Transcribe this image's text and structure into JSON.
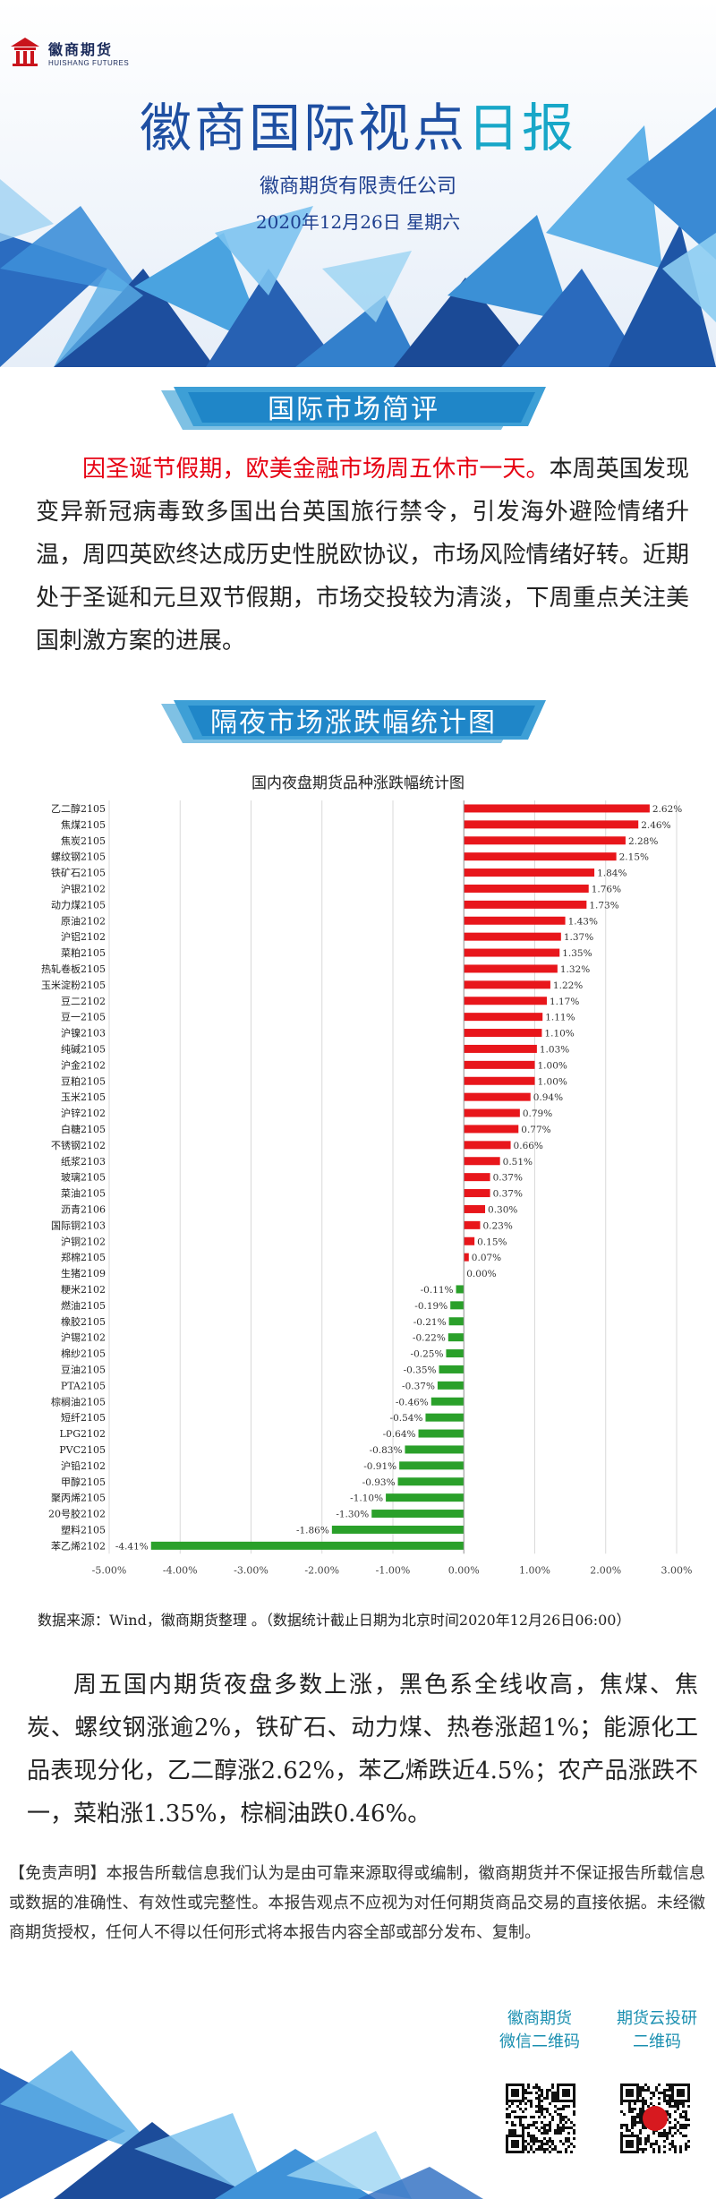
{
  "header": {
    "logo_cn": "徽商期货",
    "logo_en": "HUISHANG FUTURES",
    "title_part1": "徽商国际视点",
    "title_part2": "日报",
    "company": "徽商期货有限责任公司",
    "date": "2020年12月26日  星期六"
  },
  "section1": {
    "title": "国际市场简评",
    "para_red": "因圣诞节假期，欧美金融市场周五休市一天。",
    "para_rest": "本周英国发现变异新冠病毒致多国出台英国旅行禁令，引发海外避险情绪升温，周四英欧终达成历史性脱欧协议，市场风险情绪好转。近期处于圣诞和元旦双节假期，市场交投较为清淡，下周重点关注美国刺激方案的进展。"
  },
  "section2": {
    "title": "隔夜市场涨跌幅统计图",
    "source": "数据来源：Wind，徽商期货整理 。（数据统计截止日期为北京时间2020年12月26日06:00）",
    "commentary": "周五国内期货夜盘多数上涨，黑色系全线收高，焦煤、焦炭、螺纹钢涨逾2%，铁矿石、动力煤、热卷涨超1%；能源化工品表现分化，乙二醇涨2.62%，苯乙烯跌近4.5%；农产品涨跌不一，菜粕涨1.35%，棕榈油跌0.46%。"
  },
  "chart_data": {
    "type": "bar",
    "orientation": "horizontal",
    "title": "国内夜盘期货品种涨跌幅统计图",
    "xlim": [
      -5,
      3
    ],
    "x_ticks": [
      "-5.00%",
      "-4.00%",
      "-3.00%",
      "-2.00%",
      "-1.00%",
      "0.00%",
      "1.00%",
      "2.00%",
      "3.00%"
    ],
    "grid": "vertical",
    "positive_color": "#e8161b",
    "negative_color": "#2aa02a",
    "categories": [
      "乙二醇2105",
      "焦煤2105",
      "焦炭2105",
      "螺纹钢2105",
      "铁矿石2105",
      "沪银2102",
      "动力煤2105",
      "原油2102",
      "沪铝2102",
      "菜粕2105",
      "热轧卷板2105",
      "玉米淀粉2105",
      "豆二2102",
      "豆一2105",
      "沪镍2103",
      "纯碱2105",
      "沪金2102",
      "豆粕2105",
      "玉米2105",
      "沪锌2102",
      "白糖2105",
      "不锈钢2102",
      "纸浆2103",
      "玻璃2105",
      "菜油2105",
      "沥青2106",
      "国际铜2103",
      "沪铜2102",
      "郑棉2105",
      "生猪2109",
      "粳米2102",
      "燃油2105",
      "橡胶2105",
      "沪锡2102",
      "棉纱2105",
      "豆油2105",
      "PTA2105",
      "棕榈油2105",
      "短纤2105",
      "LPG2102",
      "PVC2105",
      "沪铅2102",
      "甲醇2105",
      "聚丙烯2105",
      "20号胶2102",
      "塑料2105",
      "苯乙烯2102"
    ],
    "values": [
      2.62,
      2.46,
      2.28,
      2.15,
      1.84,
      1.76,
      1.73,
      1.43,
      1.37,
      1.35,
      1.32,
      1.22,
      1.17,
      1.11,
      1.1,
      1.03,
      1.0,
      1.0,
      0.94,
      0.79,
      0.77,
      0.66,
      0.51,
      0.37,
      0.37,
      0.3,
      0.23,
      0.15,
      0.07,
      0.0,
      -0.11,
      -0.19,
      -0.21,
      -0.22,
      -0.25,
      -0.35,
      -0.37,
      -0.46,
      -0.54,
      -0.64,
      -0.83,
      -0.91,
      -0.93,
      -1.1,
      -1.3,
      -1.86,
      -4.41
    ],
    "data_labels": [
      "2.62%",
      "2.46%",
      "2.28%",
      "2.15%",
      "1.84%",
      "1.76%",
      "1.73%",
      "1.43%",
      "1.37%",
      "1.35%",
      "1.32%",
      "1.22%",
      "1.17%",
      "1.11%",
      "1.10%",
      "1.03%",
      "1.00%",
      "1.00%",
      "0.94%",
      "0.79%",
      "0.77%",
      "0.66%",
      "0.51%",
      "0.37%",
      "0.37%",
      "0.30%",
      "0.23%",
      "0.15%",
      "0.07%",
      "0.00%",
      "-0.11%",
      "-0.19%",
      "-0.21%",
      "-0.22%",
      "-0.25%",
      "-0.35%",
      "-0.37%",
      "-0.46%",
      "-0.54%",
      "-0.64%",
      "-0.83%",
      "-0.91%",
      "-0.93%",
      "-1.10%",
      "-1.30%",
      "-1.86%",
      "-4.41%"
    ]
  },
  "disclaimer": "【免责声明】本报告所载信息我们认为是由可靠来源取得或编制，徽商期货并不保证报告所载信息或数据的准确性、有效性或完整性。本报告观点不应视为对任何期货商品交易的直接依据。未经徽商期货授权，任何人不得以任何形式将本报告内容全部或部分发布、复制。",
  "footer": {
    "qr1_line1": "徽商期货",
    "qr1_line2": "微信二维码",
    "qr2_line1": "期货云投研",
    "qr2_line2": "二维码"
  }
}
